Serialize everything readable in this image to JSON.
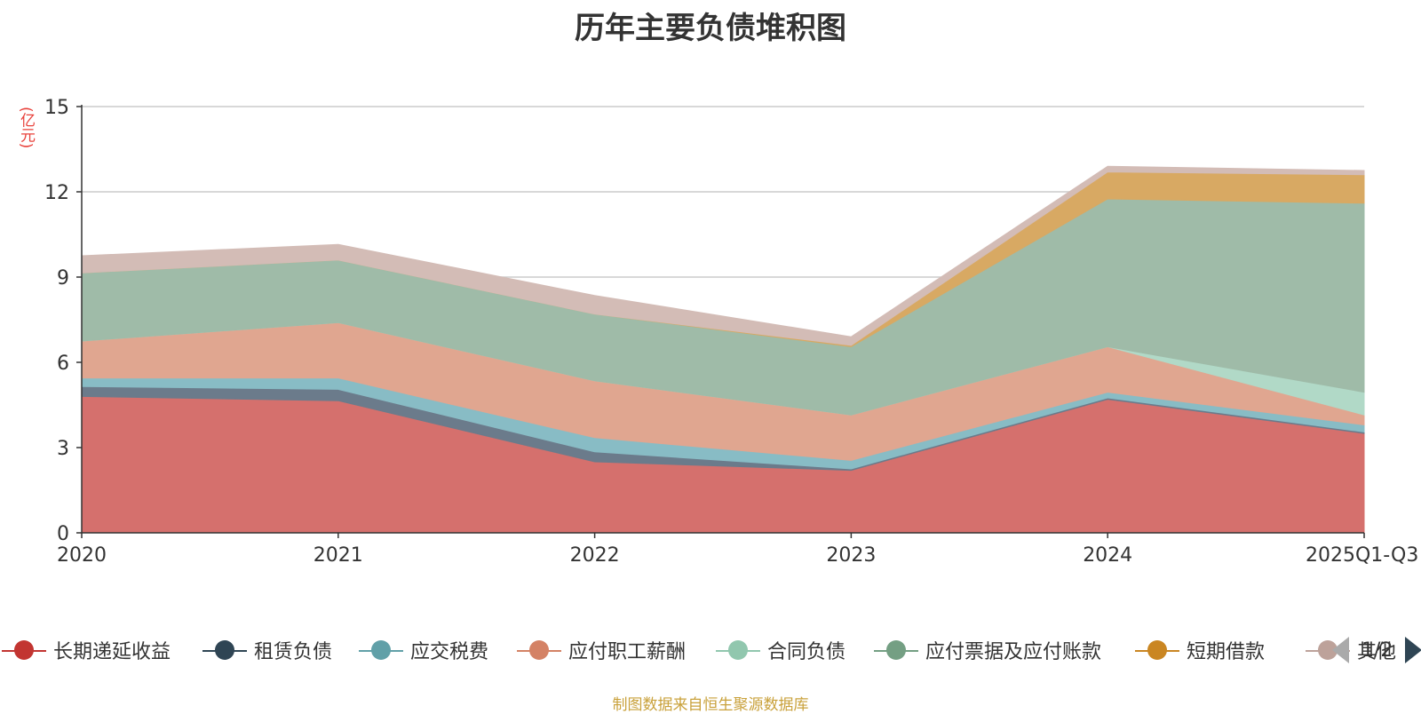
{
  "chart_data": {
    "type": "area",
    "title": "历年主要负债堆积图",
    "ylabel": "(亿元)",
    "xlabel": "",
    "categories": [
      "2020",
      "2021",
      "2022",
      "2023",
      "2024",
      "2025Q1-Q3"
    ],
    "ylim": [
      0,
      15
    ],
    "yticks": [
      0,
      3,
      6,
      9,
      12,
      15
    ],
    "grid": true,
    "stacked": true,
    "series": [
      {
        "name": "长期递延收益",
        "color": "#d5706d",
        "legend_color": "#c23531",
        "values": [
          4.8,
          4.65,
          2.5,
          2.2,
          4.7,
          3.5
        ]
      },
      {
        "name": "租赁负债",
        "color": "#6b7b8b",
        "legend_color": "#2f4554",
        "values": [
          0.35,
          0.4,
          0.35,
          0.05,
          0.05,
          0.05
        ]
      },
      {
        "name": "应交税费",
        "color": "#88bcc5",
        "legend_color": "#61a0a8",
        "values": [
          0.3,
          0.4,
          0.5,
          0.3,
          0.2,
          0.25
        ]
      },
      {
        "name": "应付职工薪酬",
        "color": "#e0a690",
        "legend_color": "#d48265",
        "values": [
          1.3,
          1.95,
          2.0,
          1.6,
          1.6,
          0.35
        ]
      },
      {
        "name": "合同负债",
        "color": "#b1d9c7",
        "legend_color": "#91c7ae",
        "values": [
          0.0,
          0.0,
          0.0,
          0.0,
          0.0,
          0.8
        ]
      },
      {
        "name": "应付票据及应付账款",
        "color": "#9fbba8",
        "legend_color": "#749f83",
        "values": [
          2.4,
          2.2,
          2.35,
          2.4,
          5.2,
          6.65
        ]
      },
      {
        "name": "短期借款",
        "color": "#d8a963",
        "legend_color": "#ca8622",
        "values": [
          0.0,
          0.0,
          0.0,
          0.05,
          0.95,
          1.0
        ]
      },
      {
        "name": "其他",
        "color": "#d3bcb6",
        "legend_color": "#bda29a",
        "values": [
          0.6,
          0.55,
          0.65,
          0.3,
          0.2,
          0.15
        ]
      }
    ]
  },
  "legend": {
    "page_indicator": "1/2"
  },
  "footer": {
    "source": "制图数据来自恒生聚源数据库"
  }
}
